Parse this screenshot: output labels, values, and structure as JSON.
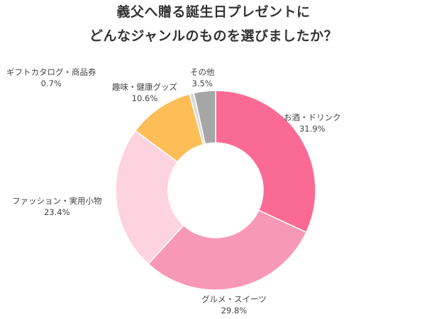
{
  "chart_data": {
    "type": "pie",
    "title_line1": "義父へ贈る誕生日プレゼントに",
    "title_line2": "どんなジャンルのものを選びましたか？",
    "categories": [
      "お酒・ドリンク",
      "グルメ・スイーツ",
      "ファッション・実用小物",
      "趣味・健康グッズ",
      "ギフトカタログ・商品券",
      "その他"
    ],
    "values": [
      31.9,
      29.8,
      23.4,
      10.6,
      0.7,
      3.5
    ],
    "value_labels": [
      "31.9%",
      "29.8%",
      "23.4%",
      "10.6%",
      "0.7%",
      "3.5%"
    ],
    "colors": [
      "#fb6a95",
      "#f799b6",
      "#fdd3e0",
      "#fdbd57",
      "#d9d9d9",
      "#a6a6a6"
    ],
    "donut": true
  }
}
